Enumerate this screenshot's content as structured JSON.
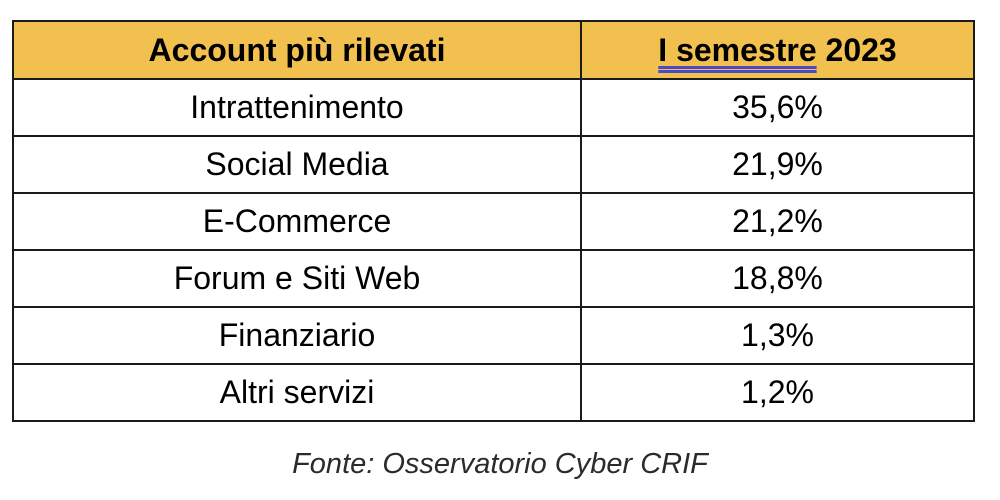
{
  "chart_data": {
    "type": "table",
    "columns": [
      "Account più rilevati",
      "I semestre 2023"
    ],
    "header_highlight": {
      "underlined_text": "I semestre",
      "plain_text": " 2023"
    },
    "rows": [
      {
        "category": "Intrattenimento",
        "value": "35,6%"
      },
      {
        "category": "Social Media",
        "value": "21,9%"
      },
      {
        "category": "E-Commerce",
        "value": "21,2%"
      },
      {
        "category": "Forum e Siti Web",
        "value": "18,8%"
      },
      {
        "category": "Finanziario",
        "value": "1,3%"
      },
      {
        "category": "Altri servizi",
        "value": "1,2%"
      }
    ],
    "values_numeric": [
      35.6,
      21.9,
      21.2,
      18.8,
      1.3,
      1.2
    ],
    "unit": "%",
    "source": "Fonte: Osservatorio Cyber CRIF"
  },
  "colors": {
    "header_background": "#f2c04e",
    "border": "#1a1a1a",
    "underline": "#4a4ac8"
  }
}
